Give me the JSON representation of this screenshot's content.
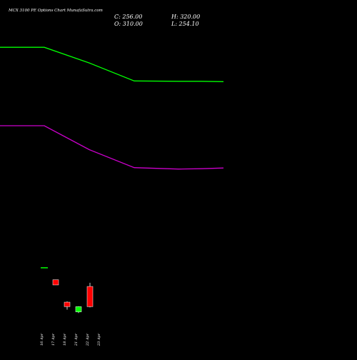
{
  "header": {
    "title": "MCX  3100  PE Options  Chart MunafaSutra.com",
    "close_label": "C: 256.00",
    "high_label": "H: 320.00",
    "open_label": "O: 310.00",
    "low_label": "L: 254.10"
  },
  "colors": {
    "background": "#000000",
    "text": "#ffffff",
    "upper_line": "#00ff00",
    "lower_line": "#cc00cc",
    "bullish": "#00ff00",
    "bearish": "#ff0000",
    "doji": "#00ff00"
  },
  "chart_data": {
    "type": "candlestick",
    "title": "MCX  3100  PE Options  Chart MunafaSutra.com",
    "x_tick_labels": [
      "16 Apr",
      "17 Apr",
      "18 Apr",
      "21 Apr",
      "22 Apr",
      "23 Apr"
    ],
    "candles": [
      {
        "index": 0,
        "open": 360,
        "high": 360,
        "low": 360,
        "close": 360
      },
      {
        "index": 1,
        "open": 328,
        "high": 328,
        "low": 314,
        "close": 314
      },
      {
        "index": 2,
        "open": 268,
        "high": 270,
        "low": 248,
        "close": 256
      },
      {
        "index": 3,
        "open": 242,
        "high": 257,
        "low": 239,
        "close": 256
      },
      {
        "index": 4,
        "open": 310,
        "high": 320,
        "low": 254.1,
        "close": 256
      }
    ],
    "overlay_series": [
      {
        "color": "upper-line",
        "points": [
          [
            -1,
            950
          ],
          [
            0,
            950
          ],
          [
            1,
            908
          ],
          [
            2,
            860
          ],
          [
            3,
            859
          ],
          [
            4,
            859
          ],
          [
            5,
            858
          ]
        ]
      },
      {
        "color": "lower-line",
        "points": [
          [
            -1,
            740
          ],
          [
            0,
            740
          ],
          [
            1,
            676
          ],
          [
            2,
            628
          ],
          [
            3,
            624
          ],
          [
            4,
            625
          ],
          [
            5,
            627
          ]
        ]
      }
    ],
    "ylim": [
      140,
      1000
    ],
    "xlim": [
      -1,
      5
    ],
    "grid": false
  }
}
